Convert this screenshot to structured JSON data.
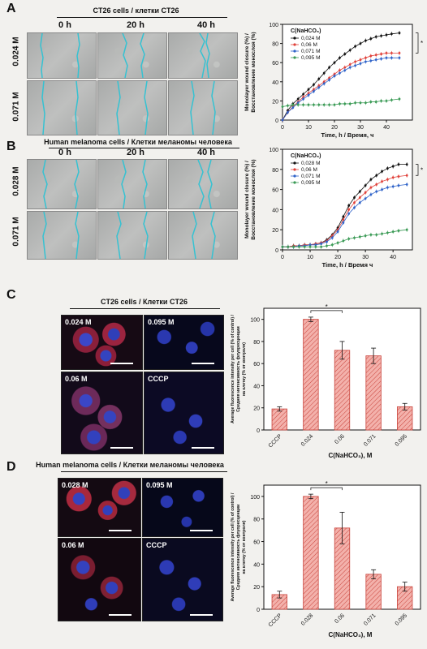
{
  "panels": {
    "A": {
      "letter": "A",
      "title": "CT26 cells / клетки CT26",
      "cols": [
        "0 h",
        "20 h",
        "40 h"
      ],
      "rows": [
        "0.024 M",
        "0.071 M"
      ]
    },
    "B": {
      "letter": "B",
      "title": "Human melanoma cells / Клетки меланомы человека",
      "cols": [
        "0 h",
        "20 h",
        "40 h"
      ],
      "rows": [
        "0.028 M",
        "0.071 M"
      ]
    },
    "C": {
      "letter": "C",
      "title": "CT26 cells / Клетки CT26",
      "images": [
        "0.024 M",
        "0.095 M",
        "0.06 M",
        "CCCP"
      ]
    },
    "D": {
      "letter": "D",
      "title": "Human melanoma cells / Клетки меланомы человека",
      "images": [
        "0.028 M",
        "0.095 M",
        "0.06 M",
        "CCCP"
      ]
    }
  },
  "colors": {
    "black": "#111111",
    "red": "#e0413a",
    "blue": "#2f63c9",
    "green": "#3a9a55",
    "bar_fill": "#f3b1ab",
    "bar_stroke": "#c9433b",
    "cyan": "#35c2d2"
  },
  "chart_data": [
    {
      "id": "A",
      "type": "line",
      "ylabel": "Monolayer wound closure (%) / Восстановление монослоя (%)",
      "xlabel": "Time, h / Время, ч",
      "xlim": [
        0,
        50
      ],
      "ylim": [
        0,
        100
      ],
      "xticks": [
        "0",
        "10",
        "20",
        "30",
        "40"
      ],
      "yticks": [
        "0",
        "20",
        "40",
        "60",
        "80",
        "100"
      ],
      "legend_title": "C(NaHCO₃)",
      "x": [
        0,
        2,
        4,
        6,
        8,
        10,
        12,
        14,
        16,
        18,
        20,
        22,
        24,
        26,
        28,
        30,
        32,
        34,
        36,
        38,
        40,
        42,
        45
      ],
      "series": [
        {
          "name": "0,024 M",
          "color": "black",
          "values": [
            0,
            10,
            17,
            22,
            27,
            32,
            37,
            43,
            49,
            55,
            60,
            65,
            69,
            73,
            77,
            80,
            83,
            85,
            87,
            88,
            89,
            90,
            91
          ]
        },
        {
          "name": "0,06 M",
          "color": "red",
          "values": [
            0,
            8,
            14,
            19,
            24,
            28,
            32,
            36,
            40,
            44,
            48,
            52,
            55,
            58,
            61,
            63,
            65,
            67,
            68,
            69,
            70,
            70,
            70
          ]
        },
        {
          "name": "0,071 M",
          "color": "blue",
          "values": [
            0,
            8,
            13,
            18,
            22,
            26,
            30,
            34,
            38,
            42,
            46,
            49,
            52,
            55,
            57,
            59,
            61,
            62,
            63,
            64,
            65,
            65,
            65
          ]
        },
        {
          "name": "0,095 M",
          "color": "green",
          "values": [
            14,
            15,
            16,
            16,
            16,
            16,
            16,
            16,
            16,
            16,
            16,
            17,
            17,
            17,
            18,
            18,
            18,
            19,
            19,
            20,
            20,
            21,
            22
          ]
        }
      ],
      "annotation": "*"
    },
    {
      "id": "B",
      "type": "line",
      "ylabel": "Monolayer wound closure (%) / Восстановление монослоя (%)",
      "xlabel": "Time, h / Время ч",
      "xlim": [
        0,
        47
      ],
      "ylim": [
        0,
        100
      ],
      "xticks": [
        "0",
        "10",
        "20",
        "30",
        "40"
      ],
      "yticks": [
        "0",
        "20",
        "40",
        "60",
        "80",
        "100"
      ],
      "legend_title": "C(NaHCO₃)",
      "x": [
        0,
        2,
        4,
        6,
        8,
        10,
        12,
        14,
        16,
        18,
        20,
        22,
        24,
        26,
        28,
        30,
        32,
        34,
        36,
        38,
        40,
        42,
        45
      ],
      "series": [
        {
          "name": "0,028 M",
          "color": "black",
          "values": [
            3,
            3,
            4,
            4,
            5,
            5,
            6,
            7,
            10,
            15,
            22,
            33,
            44,
            52,
            58,
            64,
            70,
            74,
            78,
            81,
            83,
            85,
            85
          ]
        },
        {
          "name": "0,06 M",
          "color": "red",
          "values": [
            3,
            3,
            4,
            4,
            5,
            5,
            6,
            7,
            9,
            14,
            20,
            30,
            40,
            47,
            52,
            57,
            62,
            65,
            68,
            70,
            72,
            73,
            74
          ]
        },
        {
          "name": "0,071 M",
          "color": "blue",
          "values": [
            3,
            3,
            3,
            4,
            4,
            5,
            5,
            6,
            8,
            12,
            18,
            27,
            36,
            42,
            47,
            51,
            55,
            58,
            60,
            62,
            63,
            64,
            65
          ]
        },
        {
          "name": "0,095 M",
          "color": "green",
          "values": [
            3,
            3,
            3,
            3,
            3,
            3,
            3,
            3,
            4,
            5,
            7,
            9,
            11,
            12,
            13,
            14,
            15,
            15,
            16,
            17,
            18,
            19,
            20
          ]
        }
      ],
      "annotation": "*"
    },
    {
      "id": "C",
      "type": "bar",
      "ylabel": "Average fluorescence intensity per cell (% of control) / Средняя интенсивность флуоресценции на клетку (% от контроля)",
      "xlabel": "C(NaHCO₃), M",
      "categories": [
        "CCCP",
        "0.024",
        "0.06",
        "0.071",
        "0.095"
      ],
      "values": [
        19,
        100,
        72,
        67,
        21
      ],
      "errors": [
        2,
        2,
        8,
        7,
        3
      ],
      "ylim": [
        0,
        110
      ],
      "yticks": [
        "0",
        "20",
        "40",
        "60",
        "80",
        "100"
      ],
      "annotation": "*"
    },
    {
      "id": "D",
      "type": "bar",
      "ylabel": "Average fluorescence intensity per cell (% of control) / Средняя интенсивность флуоресценции на клетку (% от контроля)",
      "xlabel": "C(NaHCO₃), M",
      "categories": [
        "CCCP",
        "0.028",
        "0.06",
        "0.071",
        "0.095"
      ],
      "values": [
        13,
        100,
        72,
        31,
        20
      ],
      "errors": [
        3,
        2,
        14,
        4,
        4
      ],
      "ylim": [
        0,
        110
      ],
      "yticks": [
        "0",
        "20",
        "40",
        "60",
        "80",
        "100"
      ],
      "annotation": "*"
    }
  ]
}
